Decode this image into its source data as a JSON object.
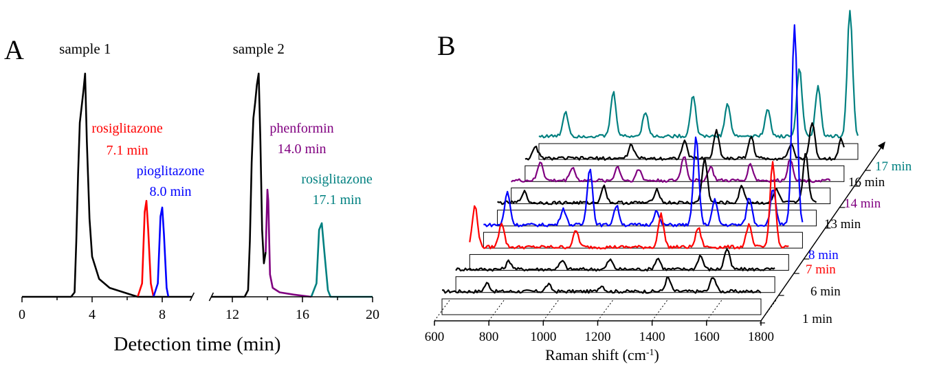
{
  "chart_data": [
    {
      "panel": "A",
      "type": "line",
      "xlabel": "Detection time (min)",
      "ylabel": "",
      "xlim": [
        0,
        20
      ],
      "axis_break": [
        9.7,
        10.8
      ],
      "xticks": [
        {
          "v": 0,
          "label": "0"
        },
        {
          "v": 4,
          "label": "4"
        },
        {
          "v": 8,
          "label": "8"
        },
        {
          "v": 12,
          "label": "12"
        },
        {
          "v": 16,
          "label": "16"
        },
        {
          "v": 20,
          "label": "20"
        }
      ],
      "sample_labels": [
        {
          "text": "sample 1",
          "at": 3.6
        },
        {
          "text": "sample 2",
          "at": 13.5
        }
      ],
      "series": [
        {
          "color": "#000000",
          "points": [
            [
              0,
              0.0
            ],
            [
              2.8,
              0.0
            ],
            [
              3.0,
              0.02
            ],
            [
              3.1,
              0.25
            ],
            [
              3.2,
              0.55
            ],
            [
              3.3,
              0.78
            ],
            [
              3.4,
              0.85
            ],
            [
              3.5,
              0.92
            ],
            [
              3.6,
              1.0
            ],
            [
              3.7,
              0.7
            ],
            [
              3.85,
              0.35
            ],
            [
              4.0,
              0.18
            ],
            [
              4.4,
              0.08
            ],
            [
              5.0,
              0.04
            ],
            [
              6.0,
              0.015
            ],
            [
              6.6,
              0.0
            ],
            [
              8.3,
              0.0
            ],
            [
              9.7,
              0.0
            ]
          ]
        },
        {
          "color": "#ff0000",
          "points": [
            [
              6.6,
              0.0
            ],
            [
              6.85,
              0.06
            ],
            [
              7.0,
              0.38
            ],
            [
              7.1,
              0.43
            ],
            [
              7.2,
              0.3
            ],
            [
              7.35,
              0.06
            ],
            [
              7.5,
              0.0
            ]
          ]
        },
        {
          "color": "#0000ff",
          "points": [
            [
              7.5,
              0.0
            ],
            [
              7.75,
              0.06
            ],
            [
              7.9,
              0.36
            ],
            [
              8.0,
              0.4
            ],
            [
              8.1,
              0.28
            ],
            [
              8.25,
              0.04
            ],
            [
              8.35,
              0.0
            ]
          ]
        },
        {
          "color": "#000000",
          "points": [
            [
              10.8,
              0.0
            ],
            [
              12.7,
              0.0
            ],
            [
              12.9,
              0.03
            ],
            [
              13.0,
              0.25
            ],
            [
              13.1,
              0.6
            ],
            [
              13.2,
              0.8
            ],
            [
              13.3,
              0.87
            ],
            [
              13.4,
              0.95
            ],
            [
              13.5,
              1.0
            ],
            [
              13.6,
              0.7
            ],
            [
              13.7,
              0.3
            ],
            [
              13.8,
              0.15
            ],
            [
              13.9,
              0.2
            ]
          ]
        },
        {
          "color": "#800080",
          "points": [
            [
              13.9,
              0.2
            ],
            [
              14.0,
              0.48
            ],
            [
              14.05,
              0.43
            ],
            [
              14.15,
              0.1
            ],
            [
              14.3,
              0.04
            ],
            [
              14.7,
              0.02
            ],
            [
              15.5,
              0.01
            ],
            [
              16.5,
              0.0
            ]
          ]
        },
        {
          "color": "#008080",
          "points": [
            [
              16.5,
              0.0
            ],
            [
              16.8,
              0.06
            ],
            [
              16.95,
              0.3
            ],
            [
              17.1,
              0.33
            ],
            [
              17.25,
              0.2
            ],
            [
              17.45,
              0.03
            ],
            [
              17.6,
              0.0
            ],
            [
              20,
              0.0
            ]
          ]
        }
      ],
      "annotations": [
        {
          "text": "rosiglitazone",
          "color": "#ff0000",
          "at": 7.1
        },
        {
          "text": "7.1 min",
          "color": "#ff0000",
          "at": 7.1
        },
        {
          "text": "pioglitazone",
          "color": "#0000ff",
          "at": 8.0
        },
        {
          "text": "8.0 min",
          "color": "#0000ff",
          "at": 8.0
        },
        {
          "text": "phenformin",
          "color": "#800080",
          "at": 14.0
        },
        {
          "text": "14.0 min",
          "color": "#800080",
          "at": 14.0
        },
        {
          "text": "rosiglitazone",
          "color": "#008080",
          "at": 17.1
        },
        {
          "text": "17.1 min",
          "color": "#008080",
          "at": 17.1
        }
      ]
    },
    {
      "panel": "B",
      "type": "line",
      "xlabel": "Raman shift (cm-1)",
      "ylabel": "",
      "xlim": [
        600,
        1800
      ],
      "xticks": [
        600,
        800,
        1000,
        1200,
        1400,
        1600,
        1800
      ],
      "depth_labels": [
        {
          "text": "1 min",
          "color": "#000000"
        },
        {
          "text": "6 min",
          "color": "#000000"
        },
        {
          "text": "7 min",
          "color": "#ff0000"
        },
        {
          "text": "8 min",
          "color": "#0000ff"
        },
        {
          "text": "13 min",
          "color": "#000000"
        },
        {
          "text": "14 min",
          "color": "#800080"
        },
        {
          "text": "16 min",
          "color": "#000000"
        },
        {
          "text": "17 min",
          "color": "#008080"
        }
      ],
      "series": [
        {
          "name": "1 min",
          "color": "#000000",
          "peaks": [
            [
              770,
              0.3
            ],
            [
              1000,
              0.25
            ],
            [
              1200,
              0.22
            ],
            [
              1450,
              0.5
            ],
            [
              1620,
              0.55
            ]
          ]
        },
        {
          "name": "6 min",
          "color": "#000000",
          "peaks": [
            [
              800,
              0.3
            ],
            [
              1000,
              0.3
            ],
            [
              1180,
              0.35
            ],
            [
              1360,
              0.4
            ],
            [
              1520,
              0.5
            ],
            [
              1620,
              0.75
            ]
          ]
        },
        {
          "name": "7 min",
          "color": "#ff0000",
          "peaks": [
            [
              620,
              1.5
            ],
            [
              720,
              0.9
            ],
            [
              1000,
              0.6
            ],
            [
              1320,
              1.2
            ],
            [
              1460,
              0.7
            ],
            [
              1650,
              0.8
            ],
            [
              1740,
              3.1
            ]
          ]
        },
        {
          "name": "8 min",
          "color": "#0000ff",
          "peaks": [
            [
              690,
              1.2
            ],
            [
              900,
              0.6
            ],
            [
              1000,
              2.1
            ],
            [
              1100,
              0.7
            ],
            [
              1250,
              0.5
            ],
            [
              1400,
              3.2
            ],
            [
              1470,
              0.9
            ],
            [
              1600,
              1.0
            ],
            [
              1690,
              1.3
            ],
            [
              1770,
              7.3
            ]
          ]
        },
        {
          "name": "13 min",
          "color": "#000000",
          "peaks": [
            [
              700,
              0.4
            ],
            [
              1000,
              0.6
            ],
            [
              1200,
              0.5
            ],
            [
              1380,
              1.6
            ],
            [
              1520,
              0.6
            ],
            [
              1650,
              0.5
            ],
            [
              1760,
              1.8
            ]
          ]
        },
        {
          "name": "14 min",
          "color": "#800080",
          "peaks": [
            [
              710,
              0.7
            ],
            [
              830,
              0.5
            ],
            [
              1000,
              0.5
            ],
            [
              1080,
              0.4
            ],
            [
              1250,
              0.9
            ],
            [
              1350,
              0.5
            ],
            [
              1500,
              0.6
            ],
            [
              1650,
              0.8
            ]
          ]
        },
        {
          "name": "16 min",
          "color": "#000000",
          "peaks": [
            [
              640,
              0.4
            ],
            [
              1000,
              0.5
            ],
            [
              1200,
              0.6
            ],
            [
              1320,
              1.0
            ],
            [
              1450,
              0.8
            ],
            [
              1600,
              0.5
            ],
            [
              1680,
              1.3
            ],
            [
              1790,
              0.7
            ]
          ]
        },
        {
          "name": "17 min",
          "color": "#008080",
          "peaks": [
            [
              700,
              0.9
            ],
            [
              880,
              1.6
            ],
            [
              1000,
              0.9
            ],
            [
              1180,
              1.5
            ],
            [
              1310,
              1.2
            ],
            [
              1460,
              1.0
            ],
            [
              1580,
              2.5
            ],
            [
              1650,
              1.8
            ],
            [
              1770,
              4.6
            ]
          ]
        }
      ]
    }
  ],
  "panel_labels": {
    "a": "A",
    "b": "B"
  }
}
